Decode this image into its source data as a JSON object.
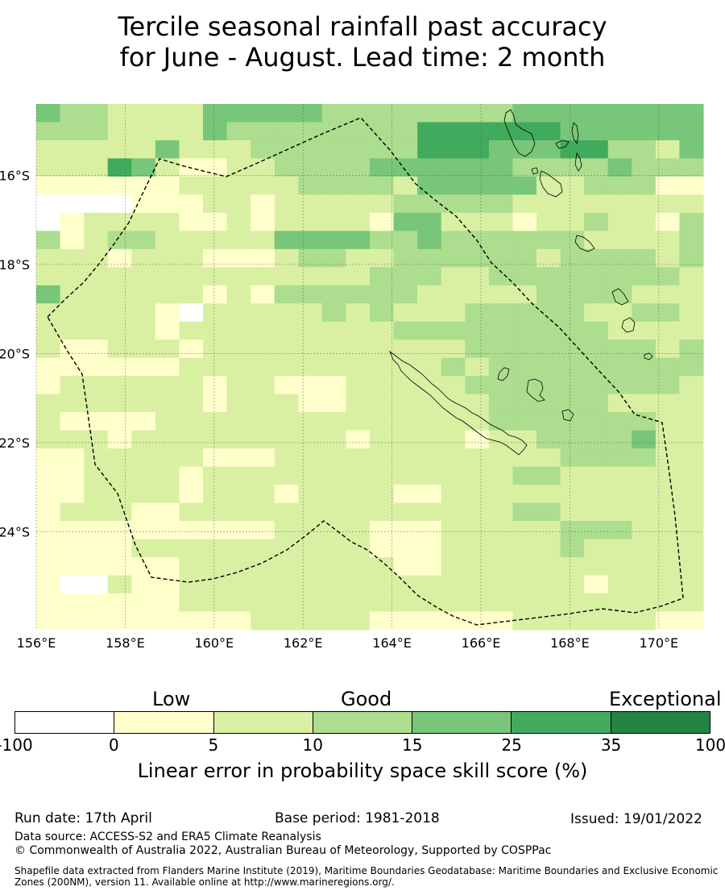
{
  "title": {
    "line1": "Tercile seasonal rainfall past accuracy",
    "line2": "for June - August. Lead time: 2 month"
  },
  "map": {
    "lat_labels": [
      "16°S",
      "18°S",
      "20°S",
      "22°S",
      "24°S"
    ],
    "lon_labels": [
      "156°E",
      "158°E",
      "160°E",
      "162°E",
      "164°E",
      "166°E",
      "168°E",
      "170°E"
    ],
    "lon_range": [
      156,
      171
    ],
    "lat_range": [
      -26.2,
      -14.4
    ],
    "category_colors": [
      "#ffffff",
      "#ffffcc",
      "#d9f0a3",
      "#addd8e",
      "#78c679",
      "#41ab5d",
      "#238443"
    ],
    "grid_rows": [
      "4332222444443333333344444444",
      "3332222433333333555555444444",
      "2222242223333333555444553324",
      "2225421122333344444433334333",
      "1111112222233332444442233311",
      "0000111221222223333322222222",
      "0122221121222214422212232213",
      "3123322222444433433333322223",
      "2221222111233223333332333323",
      "2222222222222233322333333332",
      "4222222121333333222223333222",
      "2222210222223232223333322332",
      "2222212222222223333333332222",
      "2112221222222222223333333323",
      "1111112222222222232333333333",
      "1222222122111222223333333332",
      "2222222122211222222333332222",
      "2111122222222222222333333322",
      "2221222222222122221223333422",
      "1122222111222222222222333322",
      "1122221222222222222233222222",
      "1122221222122221122222222222",
      "1222112222222222222233222222",
      "1111111111222211122222333222",
      "1111222222222211122222322222",
      "1111112222222221122222222222",
      "1002112222222222222222212222",
      "1111112222222222222222222222",
      "1111111112222211111122222211"
    ]
  },
  "legend": {
    "low": "Low",
    "good": "Good",
    "exceptional": "Exceptional",
    "ticks": [
      "-100",
      "0",
      "5",
      "10",
      "15",
      "25",
      "35",
      "100"
    ],
    "label": "Linear error in probability space skill score (%)"
  },
  "footer": {
    "run_date": "Run date: 17th April",
    "base_period": "Base period: 1981-2018",
    "issued": "Issued: 19/01/2022",
    "data_source": "Data source: ACCESS-S2 and ERA5 Climate Reanalysis",
    "copyright": "© Commonwealth of Australia 2022, Australian Bureau of Meteorology, Supported by COSPPac",
    "shapefile": "Shapefile data extracted from Flanders Marine Institute (2019), Maritime Boundaries Geodatabase: Maritime Boundaries and Exclusive Economic Zones (200NM), version 11. Available online at http://www.marineregions.org/."
  }
}
